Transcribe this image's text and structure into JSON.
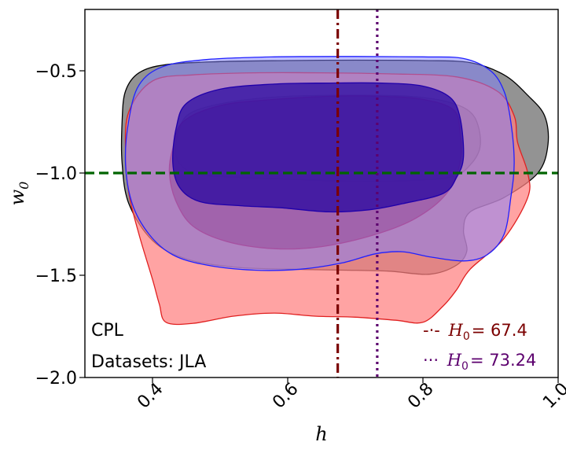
{
  "chart_data": {
    "type": "contour",
    "xlabel": "h",
    "ylabel": "w",
    "ylabel_sub": "0",
    "xlim": [
      0.3,
      1.0
    ],
    "ylim": [
      -2.0,
      -0.2
    ],
    "xticks": [
      0.4,
      0.6,
      0.8,
      1.0
    ],
    "xtick_labels": [
      "0.4",
      "0.6",
      "0.8",
      "1.0"
    ],
    "yticks": [
      -2.0,
      -1.5,
      -1.0,
      -0.5
    ],
    "ytick_labels": [
      "−2.0",
      "−1.5",
      "−1.0",
      "−0.5"
    ],
    "annotations": [
      "CPL",
      "Datasets: JLA"
    ],
    "reference_lines": [
      {
        "orientation": "horizontal",
        "value": -1.0,
        "style": "dashed",
        "color": "#006400"
      },
      {
        "orientation": "vertical",
        "value": 0.674,
        "style": "dashdot",
        "color": "#7b0000",
        "legend_marker": "-·-",
        "legend_symbol": "H",
        "legend_sub": "0",
        "legend_value": "= 67.4"
      },
      {
        "orientation": "vertical",
        "value": 0.7324,
        "style": "dotted",
        "color": "#5c006e",
        "legend_marker": "···",
        "legend_symbol": "H",
        "legend_sub": "0",
        "legend_value": "= 73.24"
      }
    ],
    "legend_position": "bottom-right",
    "contour_sets": [
      {
        "color": "#000000",
        "outer": {
          "fill": "#808080",
          "stroke": "#000000",
          "opacity": 0.85,
          "points": [
            [
              0.36,
              -0.6
            ],
            [
              0.38,
              -0.51
            ],
            [
              0.42,
              -0.47
            ],
            [
              0.5,
              -0.455
            ],
            [
              0.6,
              -0.45
            ],
            [
              0.7,
              -0.448
            ],
            [
              0.8,
              -0.45
            ],
            [
              0.87,
              -0.46
            ],
            [
              0.92,
              -0.52
            ],
            [
              0.955,
              -0.62
            ],
            [
              0.98,
              -0.72
            ],
            [
              0.985,
              -0.86
            ],
            [
              0.97,
              -1.0
            ],
            [
              0.92,
              -1.12
            ],
            [
              0.87,
              -1.19
            ],
            [
              0.86,
              -1.28
            ],
            [
              0.865,
              -1.38
            ],
            [
              0.85,
              -1.45
            ],
            [
              0.81,
              -1.495
            ],
            [
              0.75,
              -1.48
            ],
            [
              0.68,
              -1.475
            ],
            [
              0.6,
              -1.47
            ],
            [
              0.52,
              -1.46
            ],
            [
              0.45,
              -1.42
            ],
            [
              0.4,
              -1.33
            ],
            [
              0.365,
              -1.15
            ],
            [
              0.355,
              -0.95
            ],
            [
              0.355,
              -0.75
            ]
          ]
        },
        "inner": {
          "fill": "#303030",
          "stroke": "#000000",
          "opacity": 0.6,
          "points": [
            [
              0.44,
              -0.78
            ],
            [
              0.46,
              -0.7
            ],
            [
              0.52,
              -0.65
            ],
            [
              0.6,
              -0.625
            ],
            [
              0.7,
              -0.62
            ],
            [
              0.78,
              -0.625
            ],
            [
              0.84,
              -0.655
            ],
            [
              0.875,
              -0.72
            ],
            [
              0.885,
              -0.86
            ],
            [
              0.87,
              -0.96
            ],
            [
              0.84,
              -1.02
            ],
            [
              0.76,
              -1.04
            ],
            [
              0.68,
              -1.04
            ],
            [
              0.6,
              -1.03
            ],
            [
              0.52,
              -1.02
            ],
            [
              0.46,
              -1.0
            ],
            [
              0.435,
              -0.92
            ]
          ]
        }
      },
      {
        "color": "#ff0000",
        "outer": {
          "fill": "#ff8080",
          "stroke": "#e02020",
          "opacity": 0.72,
          "points": [
            [
              0.36,
              -0.9
            ],
            [
              0.365,
              -0.7
            ],
            [
              0.4,
              -0.55
            ],
            [
              0.46,
              -0.52
            ],
            [
              0.55,
              -0.51
            ],
            [
              0.65,
              -0.51
            ],
            [
              0.75,
              -0.515
            ],
            [
              0.85,
              -0.53
            ],
            [
              0.91,
              -0.6
            ],
            [
              0.935,
              -0.72
            ],
            [
              0.94,
              -0.85
            ],
            [
              0.955,
              -1.0
            ],
            [
              0.955,
              -1.12
            ],
            [
              0.92,
              -1.32
            ],
            [
              0.87,
              -1.47
            ],
            [
              0.85,
              -1.57
            ],
            [
              0.83,
              -1.65
            ],
            [
              0.8,
              -1.73
            ],
            [
              0.76,
              -1.72
            ],
            [
              0.7,
              -1.705
            ],
            [
              0.64,
              -1.7
            ],
            [
              0.58,
              -1.685
            ],
            [
              0.52,
              -1.7
            ],
            [
              0.46,
              -1.735
            ],
            [
              0.42,
              -1.73
            ],
            [
              0.41,
              -1.64
            ],
            [
              0.4,
              -1.52
            ],
            [
              0.38,
              -1.3
            ],
            [
              0.365,
              -1.1
            ]
          ]
        },
        "inner": {
          "fill": "#b8334a",
          "stroke": "#cc2040",
          "opacity": 0.75,
          "points": [
            [
              0.43,
              -0.88
            ],
            [
              0.445,
              -0.75
            ],
            [
              0.5,
              -0.67
            ],
            [
              0.58,
              -0.64
            ],
            [
              0.66,
              -0.625
            ],
            [
              0.74,
              -0.625
            ],
            [
              0.8,
              -0.64
            ],
            [
              0.845,
              -0.69
            ],
            [
              0.855,
              -0.8
            ],
            [
              0.855,
              -0.95
            ],
            [
              0.835,
              -1.1
            ],
            [
              0.79,
              -1.22
            ],
            [
              0.73,
              -1.3
            ],
            [
              0.65,
              -1.36
            ],
            [
              0.58,
              -1.37
            ],
            [
              0.51,
              -1.335
            ],
            [
              0.46,
              -1.26
            ],
            [
              0.435,
              -1.14
            ],
            [
              0.425,
              -1.0
            ]
          ]
        }
      },
      {
        "color": "#0000ff",
        "outer": {
          "fill": "#7f7fff",
          "stroke": "#2020ff",
          "opacity": 0.5,
          "points": [
            [
              0.365,
              -0.74
            ],
            [
              0.38,
              -0.57
            ],
            [
              0.415,
              -0.48
            ],
            [
              0.48,
              -0.445
            ],
            [
              0.58,
              -0.432
            ],
            [
              0.7,
              -0.43
            ],
            [
              0.8,
              -0.432
            ],
            [
              0.86,
              -0.44
            ],
            [
              0.9,
              -0.5
            ],
            [
              0.92,
              -0.6
            ],
            [
              0.93,
              -0.75
            ],
            [
              0.935,
              -0.95
            ],
            [
              0.93,
              -1.12
            ],
            [
              0.92,
              -1.3
            ],
            [
              0.895,
              -1.4
            ],
            [
              0.86,
              -1.43
            ],
            [
              0.81,
              -1.41
            ],
            [
              0.77,
              -1.385
            ],
            [
              0.73,
              -1.395
            ],
            [
              0.68,
              -1.44
            ],
            [
              0.62,
              -1.47
            ],
            [
              0.55,
              -1.475
            ],
            [
              0.48,
              -1.45
            ],
            [
              0.43,
              -1.4
            ],
            [
              0.395,
              -1.3
            ],
            [
              0.37,
              -1.15
            ],
            [
              0.36,
              -0.95
            ]
          ]
        },
        "inner": {
          "fill": "#2000a0",
          "stroke": "#2000aa",
          "opacity": 0.7,
          "points": [
            [
              0.435,
              -0.78
            ],
            [
              0.45,
              -0.66
            ],
            [
              0.5,
              -0.59
            ],
            [
              0.58,
              -0.565
            ],
            [
              0.66,
              -0.56
            ],
            [
              0.74,
              -0.56
            ],
            [
              0.8,
              -0.575
            ],
            [
              0.84,
              -0.63
            ],
            [
              0.855,
              -0.73
            ],
            [
              0.86,
              -0.92
            ],
            [
              0.85,
              -1.02
            ],
            [
              0.83,
              -1.1
            ],
            [
              0.77,
              -1.15
            ],
            [
              0.72,
              -1.18
            ],
            [
              0.66,
              -1.19
            ],
            [
              0.59,
              -1.17
            ],
            [
              0.53,
              -1.16
            ],
            [
              0.47,
              -1.14
            ],
            [
              0.44,
              -1.07
            ],
            [
              0.43,
              -0.95
            ]
          ]
        }
      }
    ]
  }
}
